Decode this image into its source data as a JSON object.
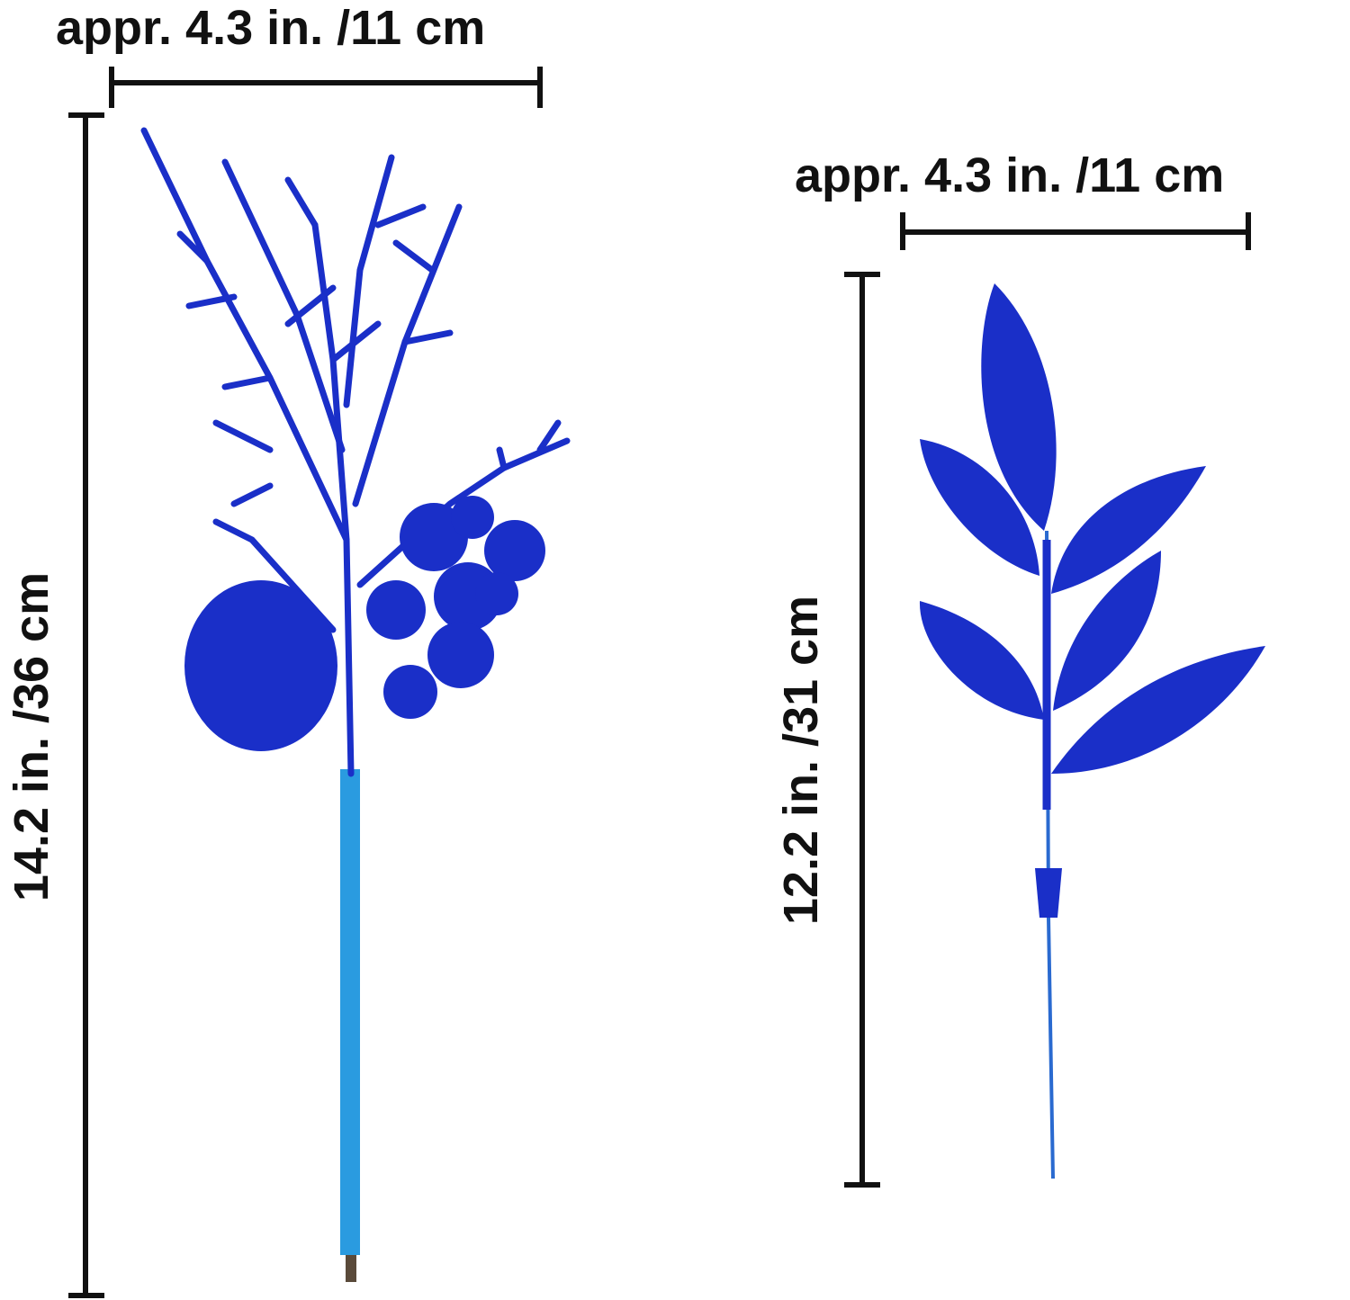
{
  "left_item": {
    "width_label": "appr. 4.3 in. /11 cm",
    "height_label": "14.2 in. /36 cm"
  },
  "right_item": {
    "width_label": "appr. 4.3 in. /11 cm",
    "height_label": "12.2 in. /31 cm"
  },
  "colors": {
    "product_blue": "#1a2fc8",
    "stem_wrap": "#2a9be0",
    "dimension_lines": "#111111"
  }
}
